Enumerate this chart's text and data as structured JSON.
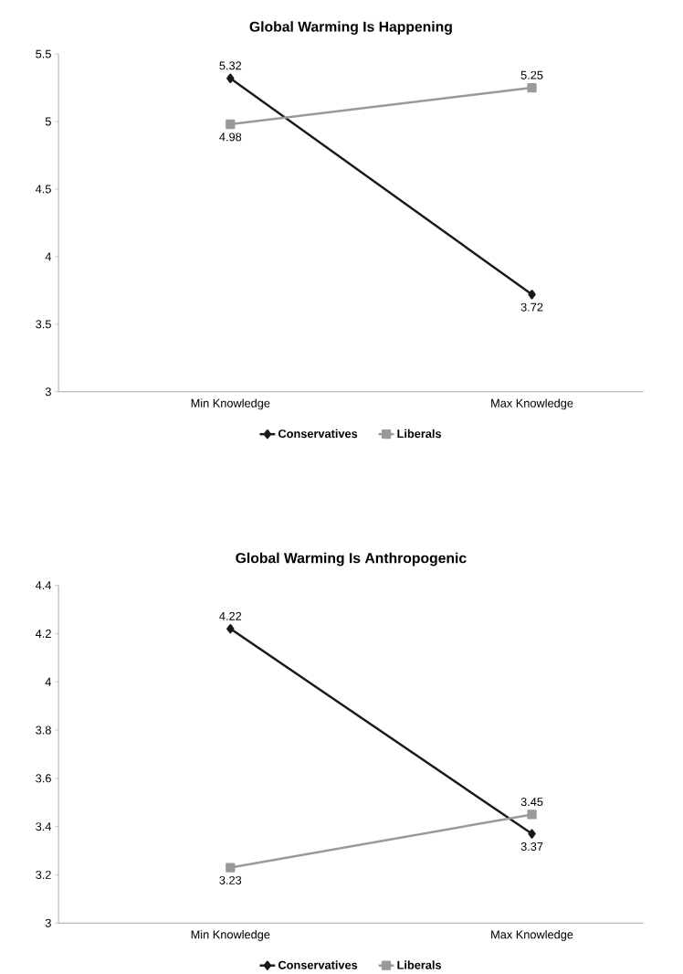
{
  "chart_data": [
    {
      "type": "line",
      "title": "Global Warming Is Happening",
      "categories": [
        "Min Knowledge",
        "Max Knowledge"
      ],
      "series": [
        {
          "name": "Conservatives",
          "color": "#1a1a1a",
          "marker": "diamond",
          "values": [
            5.32,
            3.72
          ]
        },
        {
          "name": "Liberals",
          "color": "#999999",
          "marker": "square",
          "values": [
            4.98,
            5.25
          ]
        }
      ],
      "ylim": [
        3,
        5.5
      ],
      "yticks": [
        3,
        3.5,
        4,
        4.5,
        5,
        5.5
      ],
      "data_labels": true,
      "legend": "bottom",
      "grid": false
    },
    {
      "type": "line",
      "title": "Global Warming Is Anthropogenic",
      "categories": [
        "Min Knowledge",
        "Max Knowledge"
      ],
      "series": [
        {
          "name": "Conservatives",
          "color": "#1a1a1a",
          "marker": "diamond",
          "values": [
            4.22,
            3.37
          ]
        },
        {
          "name": "Liberals",
          "color": "#999999",
          "marker": "square",
          "values": [
            3.23,
            3.45
          ]
        }
      ],
      "ylim": [
        3,
        4.4
      ],
      "yticks": [
        3,
        3.2,
        3.4,
        3.6,
        3.8,
        4,
        4.2,
        4.4
      ],
      "data_labels": true,
      "legend": "bottom",
      "grid": false
    }
  ]
}
